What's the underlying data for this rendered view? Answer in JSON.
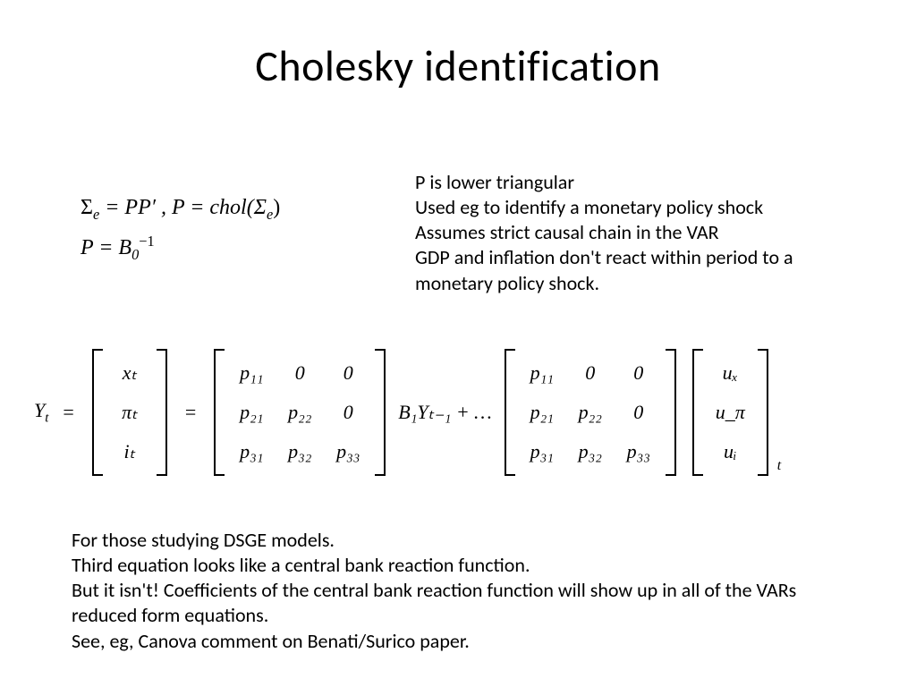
{
  "colors": {
    "bg": "#ffffff",
    "text": "#000000"
  },
  "title": "Cholesky identification",
  "formula": {
    "line1_pre": "Σ",
    "line1_sub": "e",
    "line1_mid": " = PP′ , P = chol(Σ",
    "line1_sub2": "e",
    "line1_post": ")",
    "line2_pre": "P = B",
    "line2_sub": "0",
    "line2_sup": "−1"
  },
  "annotation": {
    "l1": "P is lower triangular",
    "l2": "Used eg to identify a monetary policy shock",
    "l3": "Assumes strict causal chain in the VAR",
    "l4": "GDP and inflation don't react within period to a monetary policy shock."
  },
  "matrix": {
    "lead": "Y",
    "lead_sub": "t",
    "eq": "=",
    "Yvec": [
      "xₜ",
      "πₜ",
      "iₜ"
    ],
    "P": [
      [
        "p₁₁",
        "0",
        "0"
      ],
      [
        "p₂₁",
        "p₂₂",
        "0"
      ],
      [
        "p₃₁",
        "p₃₂",
        "p₃₃"
      ]
    ],
    "middle": "B₁Yₜ₋₁ + …",
    "uvec": [
      "uₓ",
      "u_π",
      "uᵢ"
    ],
    "tail_sub": "t"
  },
  "footnote": {
    "l1": "For those studying DSGE models.",
    "l2": "Third equation looks like a central bank reaction function.",
    "l3": "But it isn't!  Coefficients of the central bank reaction function will show up in all of the VARs reduced form equations.",
    "l4": "See, eg, Canova comment on Benati/Surico paper."
  }
}
